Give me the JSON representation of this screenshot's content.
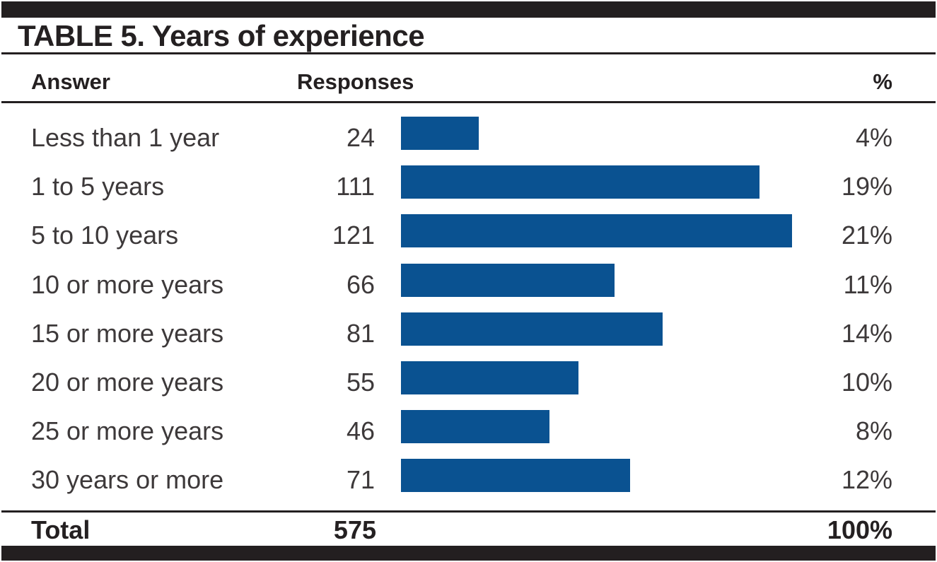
{
  "title": "TABLE 5. Years of experience",
  "columns": {
    "answer": "Answer",
    "responses": "Responses",
    "percent": "%"
  },
  "rows": [
    {
      "answer": "Less than 1 year",
      "responses": 24,
      "percent": "4%"
    },
    {
      "answer": "1 to 5 years",
      "responses": 111,
      "percent": "19%"
    },
    {
      "answer": "5 to 10 years",
      "responses": 121,
      "percent": "21%"
    },
    {
      "answer": "10 or more years",
      "responses": 66,
      "percent": "11%"
    },
    {
      "answer": "15 or more years",
      "responses": 81,
      "percent": "14%"
    },
    {
      "answer": "20 or more years",
      "responses": 55,
      "percent": "10%"
    },
    {
      "answer": "25 or more years",
      "responses": 46,
      "percent": "8%"
    },
    {
      "answer": "30 years or more",
      "responses": 71,
      "percent": "12%"
    }
  ],
  "total": {
    "label": "Total",
    "responses": 575,
    "percent": "100%"
  },
  "colors": {
    "bar": "#0a5291",
    "rule": "#231f20",
    "text_dark": "#242021",
    "text_body": "#3d393a"
  },
  "chart_data": {
    "type": "bar",
    "orientation": "horizontal",
    "title": "TABLE 5. Years of experience",
    "categories": [
      "Less than 1 year",
      "1 to 5 years",
      "5 to 10 years",
      "10 or more years",
      "15 or more years",
      "20 or more years",
      "25 or more years",
      "30 years or more"
    ],
    "values": [
      24,
      111,
      121,
      66,
      81,
      55,
      46,
      71
    ],
    "percentages": [
      4,
      19,
      21,
      11,
      14,
      10,
      8,
      12
    ],
    "total": 575,
    "total_percent": 100,
    "xlabel": "Responses",
    "ylabel": "Answer",
    "xlim": [
      0,
      121
    ],
    "grid": false,
    "legend": "none",
    "bar_color": "#0a5291"
  }
}
